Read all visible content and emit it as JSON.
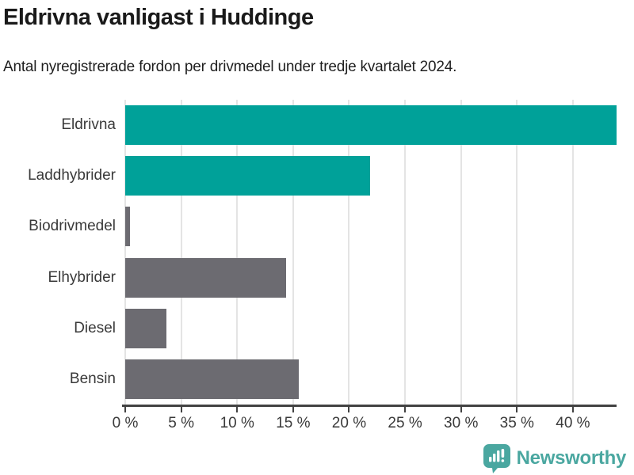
{
  "header": {
    "title": "Eldrivna vanligast i Huddinge",
    "subtitle": "Antal nyregistrerade fordon per drivmedel under tredje kvartalet 2024."
  },
  "chart_data": {
    "type": "bar",
    "orientation": "horizontal",
    "title": "Eldrivna vanligast i Huddinge",
    "subtitle": "Antal nyregistrerade fordon per drivmedel under tredje kvartalet 2024.",
    "categories": [
      "Eldrivna",
      "Laddhybrider",
      "Biodrivmedel",
      "Elhybrider",
      "Diesel",
      "Bensin"
    ],
    "values": [
      43.9,
      21.9,
      0.4,
      14.4,
      3.7,
      15.5
    ],
    "unit": "%",
    "bar_colors": [
      "#00a199",
      "#00a199",
      "#6c6b71",
      "#6c6b71",
      "#6c6b71",
      "#6c6b71"
    ],
    "highlight_color": "#00a199",
    "default_color": "#6c6b71",
    "xlabel": "",
    "ylabel": "",
    "xlim": [
      0,
      43.9
    ],
    "x_ticks": [
      0,
      5,
      10,
      15,
      20,
      25,
      30,
      35,
      40
    ],
    "x_tick_labels": [
      "0 %",
      "5 %",
      "10 %",
      "15 %",
      "20 %",
      "25 %",
      "30 %",
      "35 %",
      "40 %"
    ],
    "grid": true,
    "gridline_color": "#e4e4e4",
    "axis_color": "#424242",
    "legend": "none"
  },
  "footer": {
    "brand": "Newsworthy",
    "brand_color": "#4aa7a0",
    "logo_icon": "newsworthy-speech-bubble-bar-chart-icon"
  }
}
